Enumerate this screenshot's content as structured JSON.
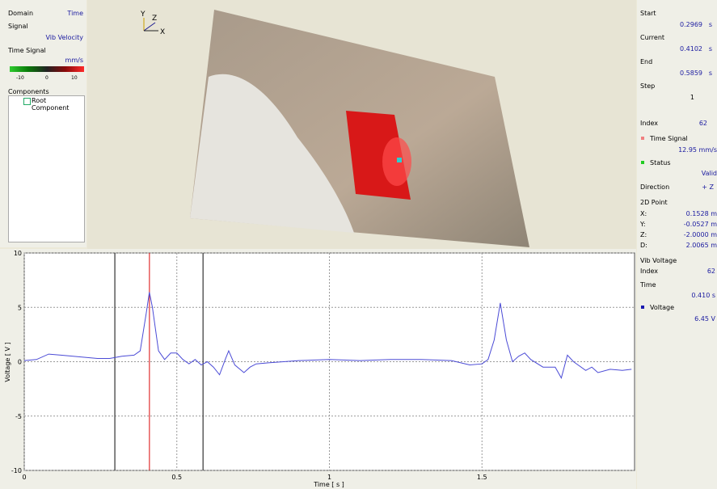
{
  "left_panel": {
    "domain_label": "Domain",
    "domain_value": "Time",
    "signal_label": "Signal",
    "signal_value": "Vib Velocity",
    "time_signal_label": "Time Signal",
    "colorbar_unit": "mm/s",
    "colorbar_ticks": [
      -10,
      0,
      10
    ],
    "components_label": "Components",
    "root_component": "Root Component"
  },
  "view3d": {
    "axis_y": "Y",
    "axis_z": "Z",
    "axis_x": "X"
  },
  "right_panel": {
    "start": {
      "label": "Start",
      "value": 0.2969,
      "unit": "s"
    },
    "current": {
      "label": "Current",
      "value": 0.4102,
      "unit": "s"
    },
    "end": {
      "label": "End",
      "value": 0.5859,
      "unit": "s"
    },
    "step": {
      "label": "Step",
      "value": 1
    },
    "index": {
      "label": "Index",
      "value": 62
    },
    "time_signal": {
      "label": "Time Signal",
      "value": "12.95 mm/s"
    },
    "status": {
      "label": "Status",
      "value": "Valid"
    },
    "direction": {
      "label": "Direction",
      "value": "+ Z"
    },
    "point2d": {
      "label": "2D Point",
      "x_label": "X:",
      "x_value": "0.1528 m",
      "y_label": "Y:",
      "y_value": "-0.0527 m",
      "z_label": "Z:",
      "z_value": "-2.0000 m",
      "d_label": "D:",
      "d_value": "2.0065 m"
    },
    "vib_voltage": {
      "label": "Vib Voltage",
      "index_label": "Index",
      "index_value": 62,
      "time_label": "Time",
      "time_value": "0.410 s",
      "voltage_label": "Voltage",
      "voltage_value": "6.45 V"
    }
  },
  "chart_data": {
    "type": "line",
    "xlabel": "Time [ s ]",
    "ylabel": "Voltage [ V ]",
    "xlim": [
      0,
      2.0
    ],
    "ylim": [
      -10,
      10
    ],
    "xticks": [
      0,
      0.5,
      1,
      1.5
    ],
    "yticks": [
      -10,
      -5,
      0,
      5,
      10
    ],
    "grid": true,
    "series": [
      {
        "name": "Voltage",
        "color": "#4b4bd6",
        "x": [
          0,
          0.04,
          0.08,
          0.12,
          0.16,
          0.2,
          0.24,
          0.28,
          0.32,
          0.36,
          0.38,
          0.4,
          0.41,
          0.42,
          0.44,
          0.46,
          0.48,
          0.5,
          0.52,
          0.54,
          0.56,
          0.58,
          0.6,
          0.62,
          0.64,
          0.66,
          0.67,
          0.69,
          0.72,
          0.74,
          0.76,
          0.8,
          0.9,
          1.0,
          1.1,
          1.2,
          1.3,
          1.4,
          1.46,
          1.5,
          1.52,
          1.54,
          1.56,
          1.58,
          1.6,
          1.62,
          1.64,
          1.66,
          1.7,
          1.74,
          1.76,
          1.78,
          1.8,
          1.84,
          1.86,
          1.88,
          1.92,
          1.96,
          1.99
        ],
        "values": [
          0.1,
          0.2,
          0.7,
          0.6,
          0.5,
          0.4,
          0.3,
          0.3,
          0.5,
          0.6,
          1.0,
          4.5,
          6.4,
          5.0,
          1.0,
          0.2,
          0.8,
          0.8,
          0.2,
          -0.2,
          0.2,
          -0.3,
          0.0,
          -0.5,
          -1.2,
          0.3,
          1.0,
          -0.3,
          -1.0,
          -0.5,
          -0.2,
          -0.1,
          0.1,
          0.2,
          0.1,
          0.2,
          0.2,
          0.1,
          -0.3,
          -0.2,
          0.2,
          2.0,
          5.4,
          2.0,
          0.0,
          0.5,
          0.8,
          0.2,
          -0.5,
          -0.5,
          -1.5,
          0.6,
          0.0,
          -0.8,
          -0.5,
          -1.0,
          -0.7,
          -0.8,
          -0.7
        ]
      }
    ]
  }
}
